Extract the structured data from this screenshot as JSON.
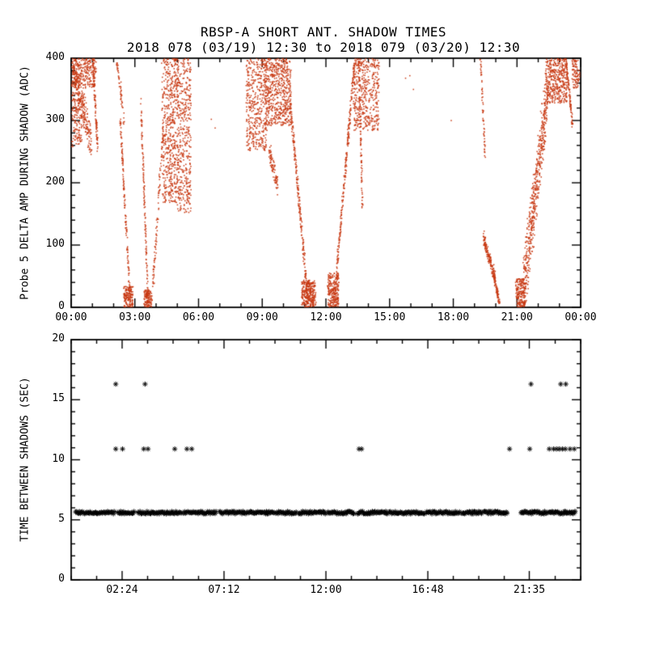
{
  "header": {
    "title": "RBSP-A SHORT ANT. SHADOW TIMES",
    "subtitle": "2018 078 (03/19) 12:30 to 2018 079 (03/20) 12:30"
  },
  "colors": {
    "background": "#ffffff",
    "axis": "#000000",
    "scatter": "#c83a14",
    "asterisk": "#000000"
  },
  "chart_data": [
    {
      "type": "scatter",
      "panel": "top",
      "ylabel": "Probe 5 DELTA AMP DURING SHADOW (ADC)",
      "xlabel": "",
      "xlim": [
        0,
        24
      ],
      "ylim": [
        0,
        400
      ],
      "grid": false,
      "xticks": {
        "values": [
          0,
          3,
          6,
          9,
          12,
          15,
          18,
          21,
          24
        ],
        "labels": [
          "00:00",
          "03:00",
          "06:00",
          "09:00",
          "12:00",
          "15:00",
          "18:00",
          "21:00",
          "00:00"
        ]
      },
      "yticks": {
        "values": [
          0,
          100,
          200,
          300,
          400
        ],
        "labels": [
          "0",
          "100",
          "200",
          "300",
          "400"
        ]
      },
      "marker": "dot",
      "color": "#c83a14",
      "point_segments": [
        {
          "shape": "box",
          "x": [
            0.02,
            1.18
          ],
          "y": [
            352,
            400
          ],
          "n": 260
        },
        {
          "shape": "line",
          "x": [
            0.08,
            0.95
          ],
          "y": [
            392,
            262
          ],
          "spread": 48,
          "n": 240
        },
        {
          "shape": "box",
          "x": [
            0.02,
            0.5
          ],
          "y": [
            258,
            345
          ],
          "n": 150
        },
        {
          "shape": "line",
          "x": [
            1.02,
            1.24
          ],
          "y": [
            400,
            256
          ],
          "spread": 13,
          "n": 110
        },
        {
          "shape": "line",
          "x": [
            2.15,
            2.5
          ],
          "y": [
            398,
            300
          ],
          "spread": 22,
          "n": 55
        },
        {
          "shape": "line",
          "x": [
            2.3,
            2.78
          ],
          "y": [
            308,
            8
          ],
          "spread": 16,
          "n": 150
        },
        {
          "shape": "box",
          "x": [
            2.48,
            2.9
          ],
          "y": [
            0,
            34
          ],
          "n": 150
        },
        {
          "shape": "line",
          "x": [
            3.28,
            3.62
          ],
          "y": [
            332,
            8
          ],
          "spread": 13,
          "n": 130
        },
        {
          "shape": "box",
          "x": [
            3.44,
            3.8
          ],
          "y": [
            0,
            28
          ],
          "n": 130
        },
        {
          "shape": "line",
          "x": [
            3.85,
            4.35
          ],
          "y": [
            32,
            298
          ],
          "spread": 26,
          "n": 100
        },
        {
          "shape": "box",
          "x": [
            4.28,
            5.05
          ],
          "y": [
            168,
            400
          ],
          "n": 540
        },
        {
          "shape": "box",
          "x": [
            5.0,
            5.64
          ],
          "y": [
            152,
            400
          ],
          "n": 430
        },
        {
          "shape": "dots",
          "points": [
            [
              6.6,
              302
            ],
            [
              6.78,
              288
            ]
          ]
        },
        {
          "shape": "box",
          "x": [
            8.25,
            9.2
          ],
          "y": [
            252,
            400
          ],
          "n": 440
        },
        {
          "shape": "box",
          "x": [
            9.15,
            10.35
          ],
          "y": [
            292,
            400
          ],
          "n": 580
        },
        {
          "shape": "line",
          "x": [
            9.3,
            9.72
          ],
          "y": [
            255,
            198
          ],
          "spread": 28,
          "n": 85
        },
        {
          "shape": "line",
          "x": [
            10.32,
            11.15
          ],
          "y": [
            328,
            10
          ],
          "spread": 24,
          "n": 240
        },
        {
          "shape": "box",
          "x": [
            10.85,
            11.52
          ],
          "y": [
            0,
            44
          ],
          "n": 300
        },
        {
          "shape": "box",
          "x": [
            12.08,
            12.6
          ],
          "y": [
            0,
            55
          ],
          "n": 260
        },
        {
          "shape": "line",
          "x": [
            12.5,
            13.35
          ],
          "y": [
            55,
            396
          ],
          "spread": 28,
          "n": 240
        },
        {
          "shape": "box",
          "x": [
            13.3,
            14.5
          ],
          "y": [
            284,
            400
          ],
          "n": 440
        },
        {
          "shape": "line",
          "x": [
            13.55,
            13.72
          ],
          "y": [
            396,
            162
          ],
          "spread": 9,
          "n": 95
        },
        {
          "shape": "dots",
          "points": [
            [
              15.75,
              368
            ],
            [
              15.95,
              372
            ],
            [
              16.12,
              350
            ],
            [
              17.9,
              300
            ]
          ]
        },
        {
          "shape": "line",
          "x": [
            19.28,
            19.5
          ],
          "y": [
            400,
            242
          ],
          "spread": 10,
          "n": 60
        },
        {
          "shape": "line",
          "x": [
            19.42,
            19.98
          ],
          "y": [
            112,
            45
          ],
          "spread": 20,
          "n": 170
        },
        {
          "shape": "line",
          "x": [
            19.9,
            20.18
          ],
          "y": [
            52,
            4
          ],
          "spread": 13,
          "n": 70
        },
        {
          "shape": "box",
          "x": [
            20.95,
            21.35
          ],
          "y": [
            0,
            46
          ],
          "n": 180
        },
        {
          "shape": "line",
          "x": [
            21.3,
            22.45
          ],
          "y": [
            22,
            352
          ],
          "spread": 92,
          "n": 540
        },
        {
          "shape": "box",
          "x": [
            22.35,
            23.35
          ],
          "y": [
            328,
            400
          ],
          "n": 400
        },
        {
          "shape": "line",
          "x": [
            23.3,
            23.62
          ],
          "y": [
            400,
            290
          ],
          "spread": 10,
          "n": 95
        },
        {
          "shape": "box",
          "x": [
            23.6,
            23.96
          ],
          "y": [
            352,
            400
          ],
          "n": 90
        }
      ]
    },
    {
      "type": "scatter",
      "panel": "bottom",
      "ylabel": "TIME BETWEEN SHADOWS (SEC)",
      "xlabel": "",
      "xlim": [
        0,
        24
      ],
      "ylim": [
        0,
        20
      ],
      "grid": false,
      "xticks": {
        "values": [
          2.4,
          7.2,
          12,
          16.8,
          21.58
        ],
        "labels": [
          "02:24",
          "07:12",
          "12:00",
          "16:48",
          "21:35"
        ]
      },
      "yticks": {
        "values": [
          0,
          5,
          10,
          15,
          20
        ],
        "labels": [
          "0",
          "5",
          "10",
          "15",
          "20"
        ]
      },
      "marker": "asterisk",
      "color": "#000000",
      "series": [
        {
          "name": "base-interval-band",
          "type": "band",
          "y": 5.6,
          "jitter": 0.11,
          "spacing": 0.045,
          "x_segments": [
            [
              0.22,
              2.02
            ],
            [
              2.2,
              2.98
            ],
            [
              3.16,
              5.2
            ],
            [
              5.3,
              6.85
            ],
            [
              7.0,
              8.2
            ],
            [
              8.3,
              9.55
            ],
            [
              9.65,
              10.6
            ],
            [
              10.72,
              11.98
            ],
            [
              12.1,
              13.32
            ],
            [
              13.5,
              14.9
            ],
            [
              15.0,
              16.62
            ],
            [
              16.72,
              18.3
            ],
            [
              18.4,
              19.35
            ],
            [
              19.45,
              20.52
            ],
            [
              21.18,
              22.4
            ],
            [
              22.48,
              23.72
            ]
          ]
        },
        {
          "name": "double-interval-points",
          "type": "points",
          "y": 10.9,
          "x": [
            2.1,
            2.42,
            3.42,
            3.62,
            4.88,
            5.45,
            5.68,
            13.56,
            13.68,
            20.65,
            21.6,
            22.52,
            22.72,
            22.86,
            23.0,
            23.14,
            23.28,
            23.5,
            23.7
          ]
        },
        {
          "name": "triple-interval-points",
          "type": "points",
          "y": 16.3,
          "x": [
            2.1,
            3.48,
            21.66,
            23.06,
            23.3
          ]
        }
      ]
    }
  ]
}
